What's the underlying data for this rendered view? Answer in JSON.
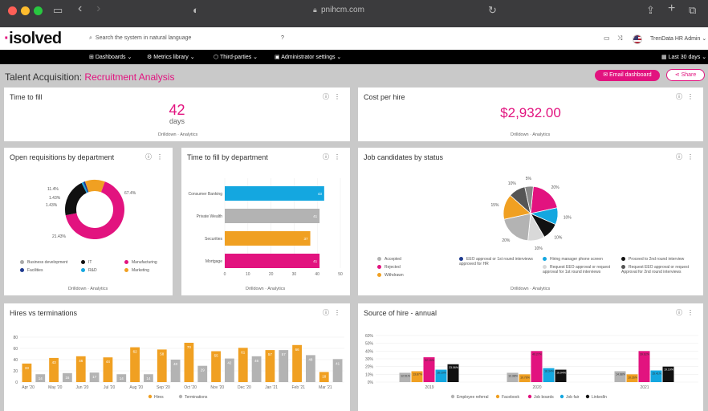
{
  "browser": {
    "url": "pnihcm.com",
    "colors": {
      "close": "#ff5f57",
      "min": "#febc2e",
      "max": "#28c840"
    }
  },
  "header": {
    "logo_text": "isolved",
    "search_placeholder": "Search the system in natural language",
    "help_mark": "?",
    "user_label": "TrenData HR Admin ⌄"
  },
  "nav": {
    "dashboards": "Dashboards ⌄",
    "metrics": "Metrics library ⌄",
    "third": "Third-parties ⌄",
    "admin": "Administrator settings ⌄",
    "range": "Last 30 days ⌄"
  },
  "page": {
    "title": "Talent Acquisition: ",
    "subtitle": "Recruitment Analysis",
    "email_button": "Email dashboard",
    "share_button": "Share"
  },
  "drill_text": "Drilldown · Analytics",
  "kpis": {
    "time_to_fill": {
      "title": "Time to fill",
      "value": "42",
      "unit": "days"
    },
    "cost_per_hire": {
      "title": "Cost per hire",
      "value": "$2,932.00"
    }
  },
  "colors": {
    "pink": "#e2137f",
    "orange": "#f0a022",
    "blue": "#14a7e0",
    "grey": "#b3b3b3",
    "black": "#111111",
    "navy": "#1f3b8f",
    "darkgrey": "#555555",
    "lightgrey": "#d9d9d9"
  },
  "open_reqs": {
    "title": "Open requisitions by department",
    "chart_data": {
      "type": "pie",
      "labels": [
        "Manufacturing",
        "IT",
        "R&D",
        "Facilities",
        "Marketing"
      ],
      "values": [
        67,
        21,
        1,
        1,
        11
      ],
      "slice_labels": [
        "67.4%",
        "21.43%",
        "1.43%",
        "1.43%",
        "11.4%"
      ],
      "legend": [
        "Business development",
        "IT",
        "Manufacturing",
        "Facilities",
        "R&D",
        "Marketing"
      ]
    }
  },
  "ttf_dept": {
    "title": "Time to fill by department",
    "chart_data": {
      "type": "bar",
      "orientation": "horizontal",
      "categories": [
        "Consumer Banking",
        "Private Wealth",
        "Securities",
        "Mortgage"
      ],
      "values": [
        43,
        41,
        37,
        41
      ],
      "value_labels": [
        "43",
        "41",
        "37",
        "41"
      ],
      "xticks": [
        "0",
        "10",
        "20",
        "30",
        "40",
        "50"
      ],
      "xlim": [
        0,
        50
      ]
    }
  },
  "candidates": {
    "title": "Job candidates by status",
    "chart_data": {
      "type": "pie",
      "values": [
        20,
        10,
        10,
        10,
        20,
        15,
        10,
        5
      ],
      "slice_labels": [
        "20%",
        "10%",
        "10%",
        "10%",
        "20%",
        "15%",
        "10%",
        "5%"
      ],
      "legend": [
        "Accepted",
        "Rejected",
        "Withdrawn",
        "EEO approval or 1st round interviews approved for HR",
        "Hiring manager phone screen",
        "Request EEO approval or request approval for 1st round interviews",
        "Proceed to 2nd round interview",
        "Request EEO approval or request Approval for 2nd round interviews"
      ]
    }
  },
  "hires": {
    "title": "Hires vs terminations",
    "chart_data": {
      "type": "bar",
      "x": [
        "Apr '20",
        "",
        "May '20",
        "",
        "Jun '20",
        "",
        "Jul '20",
        "",
        "Aug '20",
        "",
        "Sep '20",
        "",
        "Oct '20",
        "",
        "Nov '20",
        "",
        "Dec '20",
        "",
        "Jan '21",
        "",
        "Feb '21",
        "",
        "Mar '21",
        ""
      ],
      "xticks": [
        "Apr '20",
        "May '20",
        "Jun '20",
        "Jul '20",
        "Aug '20",
        "Sep '20",
        "Oct '20",
        "Nov '20",
        "Dec '20",
        "Jan '21",
        "Feb '21",
        "Mar '21"
      ],
      "series": [
        {
          "name": "Hires",
          "values": [
            33,
            0,
            43,
            0,
            46,
            0,
            44,
            0,
            62,
            0,
            58,
            0,
            70,
            0,
            55,
            0,
            61,
            0,
            57,
            0,
            66,
            0,
            18,
            0
          ]
        },
        {
          "name": "Terminations",
          "values": [
            0,
            14,
            0,
            16,
            0,
            17,
            0,
            14,
            0,
            14,
            0,
            40,
            0,
            29,
            0,
            42,
            0,
            46,
            0,
            57,
            0,
            48,
            0,
            41
          ]
        }
      ],
      "yticks": [
        "0",
        "20",
        "40",
        "60",
        "80"
      ],
      "ylim": [
        0,
        80
      ]
    }
  },
  "source": {
    "title": "Source of hire - annual",
    "chart_data": {
      "type": "bar",
      "categories": [
        "2019",
        "2020",
        "2021"
      ],
      "series": [
        {
          "name": "Employee referral",
          "values": [
            12,
            12,
            14
          ],
          "labels": [
            "12.51%",
            "12.38%",
            "14.68%"
          ]
        },
        {
          "name": "Facebook",
          "values": [
            14,
            10,
            10
          ],
          "labels": [
            "13.87%",
            "10.76%",
            "10.26%"
          ]
        },
        {
          "name": "Job boards",
          "values": [
            32,
            40,
            40
          ],
          "labels": [
            "32.15%",
            "40.27%",
            "39.62%"
          ]
        },
        {
          "name": "Job fair",
          "values": [
            16,
            18,
            15
          ],
          "labels": [
            "16.10%",
            "18.34%",
            "15.41%"
          ]
        },
        {
          "name": "LinkedIn",
          "values": [
            23,
            16,
            20
          ],
          "labels": [
            "23.06%",
            "16.94%",
            "19.19%"
          ]
        }
      ],
      "yticks": [
        "0%",
        "10%",
        "20%",
        "30%",
        "40%",
        "50%",
        "60%"
      ],
      "ylim": [
        0,
        60
      ]
    }
  }
}
